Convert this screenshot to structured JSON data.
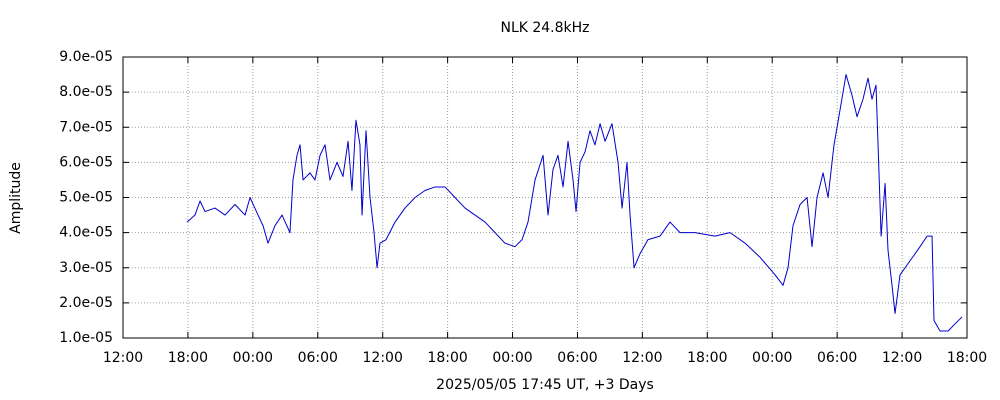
{
  "chart_data": {
    "type": "line",
    "title": "NLK 24.8kHz",
    "x_label": "2025/05/05 17:45 UT, +3 Days",
    "y_label": "Amplitude",
    "color": "#0000cc",
    "grid": true,
    "xlim": [
      0,
      78
    ],
    "xticks": [
      {
        "value": 0,
        "label": "12:00"
      },
      {
        "value": 6,
        "label": "18:00"
      },
      {
        "value": 12,
        "label": "00:00"
      },
      {
        "value": 18,
        "label": "06:00"
      },
      {
        "value": 24,
        "label": "12:00"
      },
      {
        "value": 30,
        "label": "18:00"
      },
      {
        "value": 36,
        "label": "00:00"
      },
      {
        "value": 42,
        "label": "06:00"
      },
      {
        "value": 48,
        "label": "12:00"
      },
      {
        "value": 54,
        "label": "18:00"
      },
      {
        "value": 60,
        "label": "00:00"
      },
      {
        "value": 66,
        "label": "06:00"
      },
      {
        "value": 72,
        "label": "12:00"
      },
      {
        "value": 78,
        "label": "18:00"
      }
    ],
    "ylim": [
      1e-05,
      9e-05
    ],
    "yticks": [
      {
        "value": 1e-05,
        "label": "1.0e-05"
      },
      {
        "value": 2e-05,
        "label": "2.0e-05"
      },
      {
        "value": 3e-05,
        "label": "3.0e-05"
      },
      {
        "value": 4e-05,
        "label": "4.0e-05"
      },
      {
        "value": 5e-05,
        "label": "5.0e-05"
      },
      {
        "value": 6e-05,
        "label": "6.0e-05"
      },
      {
        "value": 7e-05,
        "label": "7.0e-05"
      },
      {
        "value": 8e-05,
        "label": "8.0e-05"
      },
      {
        "value": 9e-05,
        "label": "9.0e-05"
      }
    ],
    "x": [
      5.92,
      6.65,
      7.12,
      7.58,
      8.5,
      9.43,
      10.35,
      11.28,
      11.74,
      12.48,
      12.94,
      13.4,
      14.05,
      14.7,
      15.43,
      15.71,
      16.08,
      16.36,
      16.64,
      17.28,
      17.74,
      18.21,
      18.67,
      19.13,
      19.78,
      20.33,
      20.8,
      21.16,
      21.53,
      21.9,
      22.09,
      22.46,
      22.83,
      23.2,
      23.48,
      23.75,
      24.31,
      25.14,
      26.06,
      26.99,
      27.91,
      28.84,
      29.76,
      30.68,
      31.61,
      32.53,
      33.46,
      34.38,
      35.3,
      36.23,
      36.88,
      37.43,
      38.08,
      38.82,
      39.28,
      39.74,
      40.2,
      40.67,
      41.13,
      41.59,
      41.87,
      42.24,
      42.7,
      43.16,
      43.62,
      44.09,
      44.55,
      45.19,
      45.75,
      46.12,
      46.58,
      46.86,
      47.23,
      47.78,
      48.52,
      49.63,
      50.55,
      51.48,
      52.87,
      54.71,
      56.1,
      57.49,
      58.87,
      60.26,
      61.0,
      61.46,
      61.92,
      62.57,
      63.22,
      63.68,
      64.14,
      64.7,
      65.16,
      65.71,
      66.27,
      66.82,
      67.38,
      67.84,
      68.39,
      68.85,
      69.22,
      69.59,
      69.78,
      70.06,
      70.43,
      70.7,
      71.07,
      71.35,
      71.81,
      72.74,
      73.66,
      74.31,
      74.77,
      74.95,
      75.51,
      76.25,
      76.89,
      77.54
    ],
    "values": [
      4.3e-05,
      4.5e-05,
      4.9e-05,
      4.6e-05,
      4.7e-05,
      4.5e-05,
      4.8e-05,
      4.5e-05,
      5e-05,
      4.5e-05,
      4.2e-05,
      3.7e-05,
      4.2e-05,
      4.5e-05,
      4e-05,
      5.5e-05,
      6.2e-05,
      6.5e-05,
      5.5e-05,
      5.7e-05,
      5.5e-05,
      6.2e-05,
      6.5e-05,
      5.5e-05,
      6e-05,
      5.6e-05,
      6.6e-05,
      5.2e-05,
      7.2e-05,
      6.5e-05,
      4.5e-05,
      6.9e-05,
      5e-05,
      4e-05,
      3e-05,
      3.7e-05,
      3.8e-05,
      4.3e-05,
      4.7e-05,
      5e-05,
      5.2e-05,
      5.3e-05,
      5.3e-05,
      5e-05,
      4.7e-05,
      4.5e-05,
      4.3e-05,
      4e-05,
      3.7e-05,
      3.6e-05,
      3.8e-05,
      4.3e-05,
      5.5e-05,
      6.2e-05,
      4.5e-05,
      5.8e-05,
      6.2e-05,
      5.3e-05,
      6.6e-05,
      5.5e-05,
      4.6e-05,
      6e-05,
      6.3e-05,
      6.9e-05,
      6.5e-05,
      7.1e-05,
      6.6e-05,
      7.1e-05,
      6e-05,
      4.7e-05,
      6e-05,
      4.5e-05,
      3e-05,
      3.4e-05,
      3.8e-05,
      3.9e-05,
      4.3e-05,
      4e-05,
      4e-05,
      3.9e-05,
      4e-05,
      3.7e-05,
      3.3e-05,
      2.8e-05,
      2.5e-05,
      3e-05,
      4.2e-05,
      4.8e-05,
      5e-05,
      3.6e-05,
      5e-05,
      5.7e-05,
      5e-05,
      6.5e-05,
      7.5e-05,
      8.5e-05,
      7.9e-05,
      7.3e-05,
      7.8e-05,
      8.4e-05,
      7.8e-05,
      8.2e-05,
      6.5e-05,
      3.9e-05,
      5.4e-05,
      3.5e-05,
      2.5e-05,
      1.7e-05,
      2.8e-05,
      3.2e-05,
      3.6e-05,
      3.9e-05,
      3.9e-05,
      1.5e-05,
      1.2e-05,
      1.2e-05,
      1.4e-05,
      1.6e-05
    ]
  }
}
